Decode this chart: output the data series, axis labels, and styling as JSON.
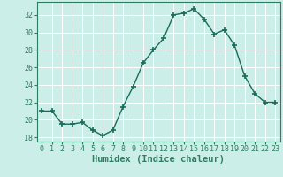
{
  "x": [
    0,
    1,
    2,
    3,
    4,
    5,
    6,
    7,
    8,
    9,
    10,
    11,
    12,
    13,
    14,
    15,
    16,
    17,
    18,
    19,
    20,
    21,
    22,
    23
  ],
  "y": [
    21.0,
    21.0,
    19.5,
    19.5,
    19.7,
    18.8,
    18.2,
    18.8,
    21.5,
    23.8,
    26.5,
    28.0,
    29.3,
    32.0,
    32.2,
    32.7,
    31.5,
    29.8,
    30.3,
    28.5,
    25.0,
    23.0,
    22.0,
    22.0
  ],
  "line_color": "#1a6b5a",
  "marker": "+",
  "marker_size": 4,
  "marker_linewidth": 1.2,
  "line_width": 1.0,
  "xlabel": "Humidex (Indice chaleur)",
  "xlim": [
    -0.5,
    23.5
  ],
  "ylim": [
    17.5,
    33.5
  ],
  "yticks": [
    18,
    20,
    22,
    24,
    26,
    28,
    30,
    32
  ],
  "xticks": [
    0,
    1,
    2,
    3,
    4,
    5,
    6,
    7,
    8,
    9,
    10,
    11,
    12,
    13,
    14,
    15,
    16,
    17,
    18,
    19,
    20,
    21,
    22,
    23
  ],
  "background_color": "#cceee8",
  "grid_color": "#ffffff",
  "tick_color": "#2e7d60",
  "axis_color": "#2e7d60",
  "xlabel_fontsize": 7.5,
  "tick_fontsize": 6.0
}
